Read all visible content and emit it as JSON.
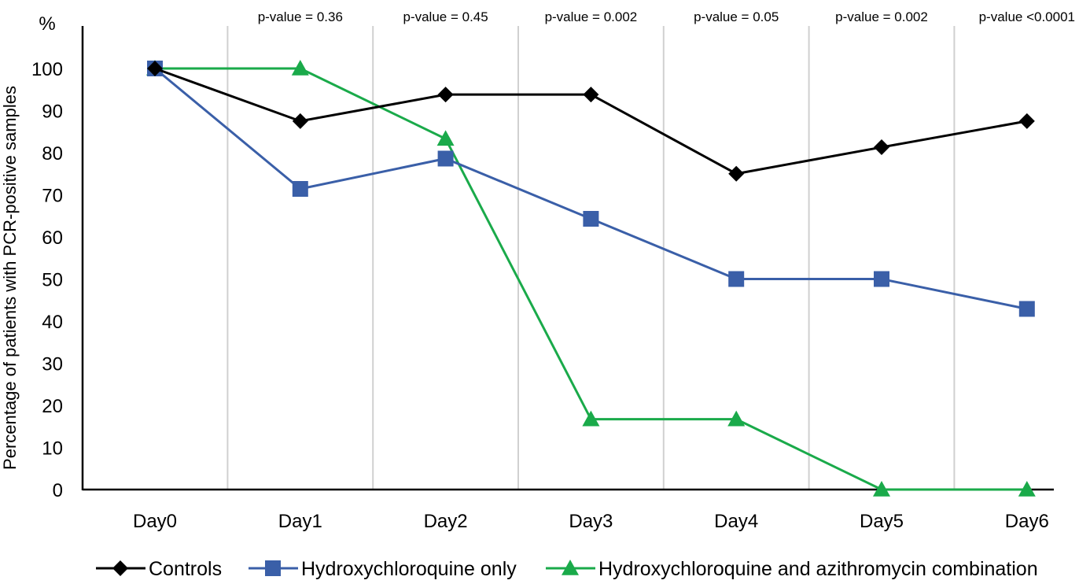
{
  "chart_data": {
    "type": "line",
    "title": "",
    "ylabel": "Percentage of patients with PCR-positive samples",
    "y_unit": "%",
    "ylim": [
      0,
      100
    ],
    "yticks": [
      0,
      10,
      20,
      30,
      40,
      50,
      60,
      70,
      80,
      90,
      100
    ],
    "categories": [
      "Day0",
      "Day1",
      "Day2",
      "Day3",
      "Day4",
      "Day5",
      "Day6"
    ],
    "p_values": [
      "p-value = 0.36",
      "p-value = 0.45",
      "p-value = 0.002",
      "p-value = 0.05",
      "p-value = 0.002",
      "p-value <0.0001"
    ],
    "grid": "vertical",
    "legend_position": "bottom",
    "series": [
      {
        "name": "Controls",
        "marker": "diamond",
        "color": "#000000",
        "values": [
          100,
          87.5,
          93.8,
          93.8,
          75,
          81.3,
          87.5
        ]
      },
      {
        "name": "Hydroxychloroquine only",
        "marker": "square",
        "color": "#3a5fa8",
        "values": [
          100,
          71.4,
          78.6,
          64.3,
          50,
          50,
          42.9
        ]
      },
      {
        "name": "Hydroxychloroquine and azithromycin combination",
        "marker": "triangle",
        "color": "#1aaa4a",
        "values": [
          100,
          100,
          83.3,
          16.7,
          16.7,
          0,
          0
        ]
      }
    ]
  }
}
